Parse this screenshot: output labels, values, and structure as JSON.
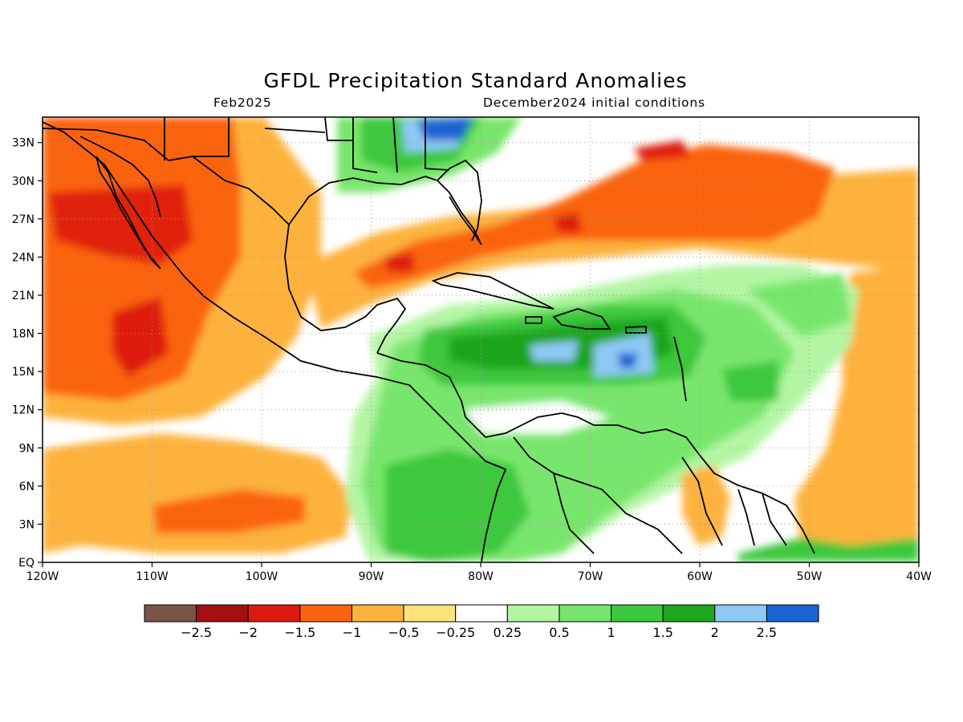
{
  "title": "GFDL Precipitation Standard Anomalies",
  "valid_month": "Feb2025",
  "init_label": "December2024 initial conditions",
  "lon_ticks": [
    "120W",
    "110W",
    "100W",
    "90W",
    "80W",
    "70W",
    "60W",
    "50W",
    "40W"
  ],
  "lat_ticks": [
    "EQ",
    "3N",
    "6N",
    "9N",
    "12N",
    "15N",
    "18N",
    "21N",
    "24N",
    "27N",
    "30N",
    "33N"
  ],
  "colorbar": {
    "colors": [
      "#7a5446",
      "#a50f0f",
      "#dd1a10",
      "#fa6410",
      "#fdb23c",
      "#fde37a",
      "#ffffff",
      "#b4f5a4",
      "#78e66c",
      "#3cc83c",
      "#1ea51e",
      "#8ec9f6",
      "#1a63d2"
    ],
    "labels": [
      "−2.5",
      "−2",
      "−1.5",
      "−1",
      "−0.5",
      "−0.25",
      "0.25",
      "0.5",
      "1",
      "1.5",
      "2",
      "2.5"
    ]
  },
  "map_extent": {
    "lon": [
      -120,
      -40
    ],
    "lat": [
      0,
      35
    ]
  }
}
